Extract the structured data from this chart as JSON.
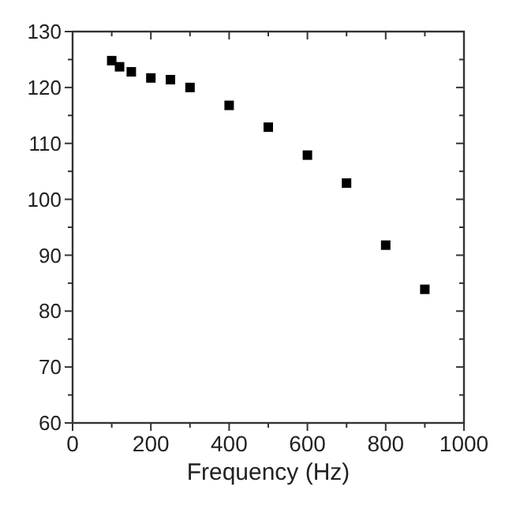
{
  "chart_data": {
    "type": "scatter",
    "xlabel": "Frequency (Hz)",
    "marker": "square",
    "x": [
      100,
      120,
      150,
      200,
      250,
      300,
      400,
      500,
      600,
      700,
      800,
      900
    ],
    "series": [
      {
        "color": "#000000",
        "values": [
          124.8,
          123.7,
          122.8,
          121.7,
          121.4,
          120.0,
          116.8,
          112.9,
          107.9,
          102.9,
          91.8,
          83.9
        ]
      }
    ],
    "xlim": [
      0,
      1000
    ],
    "xticks": [
      0,
      {
        "value": 100,
        "label": null
      },
      200,
      {
        "value": 300,
        "label": null
      },
      400,
      {
        "value": 500,
        "label": null
      },
      600,
      {
        "value": 700,
        "label": null
      },
      800,
      {
        "value": 900,
        "label": null
      },
      1000
    ],
    "ylim": [
      60,
      130
    ],
    "yticks": [
      60,
      {
        "value": 65,
        "label": null
      },
      70,
      {
        "value": 75,
        "label": null
      },
      80,
      {
        "value": 85,
        "label": null
      },
      90,
      {
        "value": 95,
        "label": null
      },
      100,
      {
        "value": 105,
        "label": null
      },
      110,
      {
        "value": 115,
        "label": null
      },
      120,
      {
        "value": 125,
        "label": null
      },
      130
    ],
    "grid": false
  }
}
